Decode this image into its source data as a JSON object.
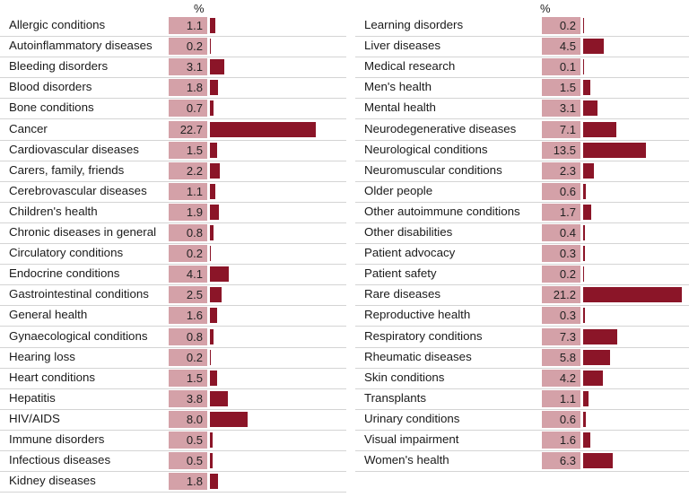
{
  "chart_data": [
    {
      "type": "bar",
      "orientation": "horizontal",
      "ylabel": "%",
      "categories": [
        "Allergic conditions",
        "Autoinflammatory diseases",
        "Bleeding disorders",
        "Blood disorders",
        "Bone conditions",
        "Cancer",
        "Cardiovascular diseases",
        "Carers, family, friends",
        "Cerebrovascular diseases",
        "Children's health",
        "Chronic diseases in general",
        "Circulatory conditions",
        "Endocrine conditions",
        "Gastrointestinal conditions",
        "General health",
        "Gynaecological conditions",
        "Hearing loss",
        "Heart conditions",
        "Hepatitis",
        "HIV/AIDS",
        "Immune disorders",
        "Infectious diseases",
        "Kidney diseases"
      ],
      "values": [
        1.1,
        0.2,
        3.1,
        1.8,
        0.7,
        22.7,
        1.5,
        2.2,
        1.1,
        1.9,
        0.8,
        0.2,
        4.1,
        2.5,
        1.6,
        0.8,
        0.2,
        1.5,
        3.8,
        8.0,
        0.5,
        0.5,
        1.8
      ],
      "labels": [
        "1.1",
        "0.2",
        "3.1",
        "1.8",
        "0.7",
        "22.7",
        "1.5",
        "2.2",
        "1.1",
        "1.9",
        "0.8",
        "0.2",
        "4.1",
        "2.5",
        "1.6",
        "0.8",
        "0.2",
        "1.5",
        "3.8",
        "8.0",
        "0.5",
        "0.5",
        "1.8"
      ]
    },
    {
      "type": "bar",
      "orientation": "horizontal",
      "ylabel": "%",
      "categories": [
        "Learning disorders",
        "Liver diseases",
        "Medical research",
        "Men's health",
        "Mental health",
        "Neurodegenerative diseases",
        "Neurological conditions",
        "Neuromuscular conditions",
        "Older people",
        "Other autoimmune conditions",
        "Other disabilities",
        "Patient advocacy",
        "Patient safety",
        "Rare diseases",
        "Reproductive health",
        "Respiratory conditions",
        "Rheumatic diseases",
        "Skin conditions",
        "Transplants",
        "Urinary conditions",
        "Visual impairment",
        "Women's health"
      ],
      "values": [
        0.2,
        4.5,
        0.1,
        1.5,
        3.1,
        7.1,
        13.5,
        2.3,
        0.6,
        1.7,
        0.4,
        0.3,
        0.2,
        21.2,
        0.3,
        7.3,
        5.8,
        4.2,
        1.1,
        0.6,
        1.6,
        6.3
      ],
      "labels": [
        "0.2",
        "4.5",
        "0.1",
        "1.5",
        "3.1",
        "7.1",
        "13.5",
        "2.3",
        "0.6",
        "1.7",
        "0.4",
        "0.3",
        "0.2",
        "21.2",
        "0.3",
        "7.3",
        "5.8",
        "4.2",
        "1.1",
        "0.6",
        "1.6",
        "6.3"
      ]
    }
  ],
  "colors": {
    "bar": "#8b1528",
    "value_box": "#d4a1a8",
    "rule": "#d4d4d4"
  }
}
